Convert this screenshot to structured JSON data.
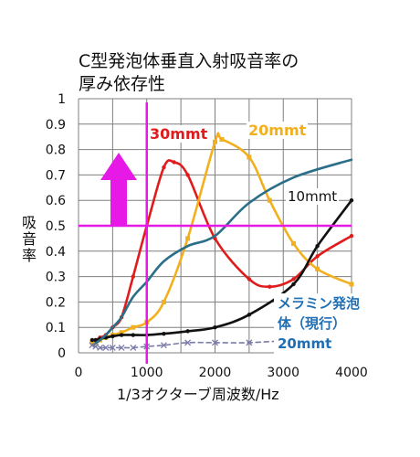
{
  "title_line1": "C型発泡体垂直入射吸音率の",
  "title_line2": "厚み依存性",
  "chart_data": {
    "type": "line",
    "title": "C型発泡体垂直入射吸音率の厚み依存性",
    "xlabel": "1/3オクターブ周波数/Hz",
    "ylabel": "吸音率",
    "xlim": [
      0,
      4000
    ],
    "ylim": [
      0,
      1
    ],
    "x_ticks": [
      "0",
      "1000",
      "2000",
      "3000",
      "4000"
    ],
    "y_ticks": [
      "0",
      "0.1",
      "0.2",
      "0.3",
      "0.4",
      "0.5",
      "0.6",
      "0.7",
      "0.8",
      "0.9",
      "1"
    ],
    "grid": true,
    "series": [
      {
        "name": "30mmt",
        "color": "#e01b1b",
        "x": [
          200,
          250,
          315,
          400,
          500,
          630,
          800,
          1000,
          1250,
          1400,
          1600,
          2000,
          2500,
          2800,
          3150,
          3500,
          4000
        ],
        "y": [
          0.05,
          0.05,
          0.06,
          0.07,
          0.1,
          0.14,
          0.3,
          0.5,
          0.73,
          0.75,
          0.7,
          0.45,
          0.29,
          0.26,
          0.29,
          0.38,
          0.46
        ]
      },
      {
        "name": "20mmt",
        "color": "#f2b01e",
        "x": [
          200,
          250,
          315,
          400,
          500,
          630,
          800,
          1000,
          1250,
          1600,
          2000,
          2100,
          2500,
          2800,
          3150,
          3500,
          4000
        ],
        "y": [
          0.04,
          0.04,
          0.05,
          0.06,
          0.07,
          0.08,
          0.1,
          0.12,
          0.2,
          0.45,
          0.83,
          0.84,
          0.77,
          0.6,
          0.43,
          0.33,
          0.27
        ]
      },
      {
        "name": "10mmt",
        "color": "#111111",
        "x": [
          200,
          250,
          315,
          400,
          500,
          630,
          800,
          1000,
          1250,
          1600,
          2000,
          2500,
          3150,
          3500,
          4000
        ],
        "y": [
          0.05,
          0.05,
          0.055,
          0.06,
          0.065,
          0.07,
          0.07,
          0.07,
          0.075,
          0.085,
          0.1,
          0.15,
          0.27,
          0.42,
          0.6
        ]
      },
      {
        "name": "",
        "color": "#2a6e88",
        "x": [
          200,
          315,
          400,
          500,
          630,
          800,
          1000,
          1250,
          1600,
          2000,
          2500,
          3150,
          4000
        ],
        "y": [
          0.03,
          0.05,
          0.07,
          0.1,
          0.14,
          0.22,
          0.28,
          0.36,
          0.42,
          0.46,
          0.59,
          0.69,
          0.76
        ]
      },
      {
        "name": "メラミン発泡体（現行）20mmt",
        "color": "#7a7aa8",
        "dashed": true,
        "x": [
          200,
          250,
          315,
          400,
          500,
          630,
          800,
          1000,
          1250,
          1600,
          2000,
          2500,
          3150
        ],
        "y": [
          0.03,
          0.025,
          0.02,
          0.02,
          0.02,
          0.02,
          0.02,
          0.025,
          0.03,
          0.04,
          0.04,
          0.04,
          0.05
        ]
      }
    ],
    "annotations": {
      "label_30": "30mmt",
      "label_20": "20mmt",
      "label_10": "10mmt",
      "melamine_line1": "メラミン発泡",
      "melamine_line2": "体（現行）",
      "melamine_line3": "20mmt"
    },
    "highlights": {
      "color": "#e619e6",
      "vertical_line_x": 1000,
      "horizontal_line_y": 0.5,
      "arrow_direction": "up"
    }
  }
}
